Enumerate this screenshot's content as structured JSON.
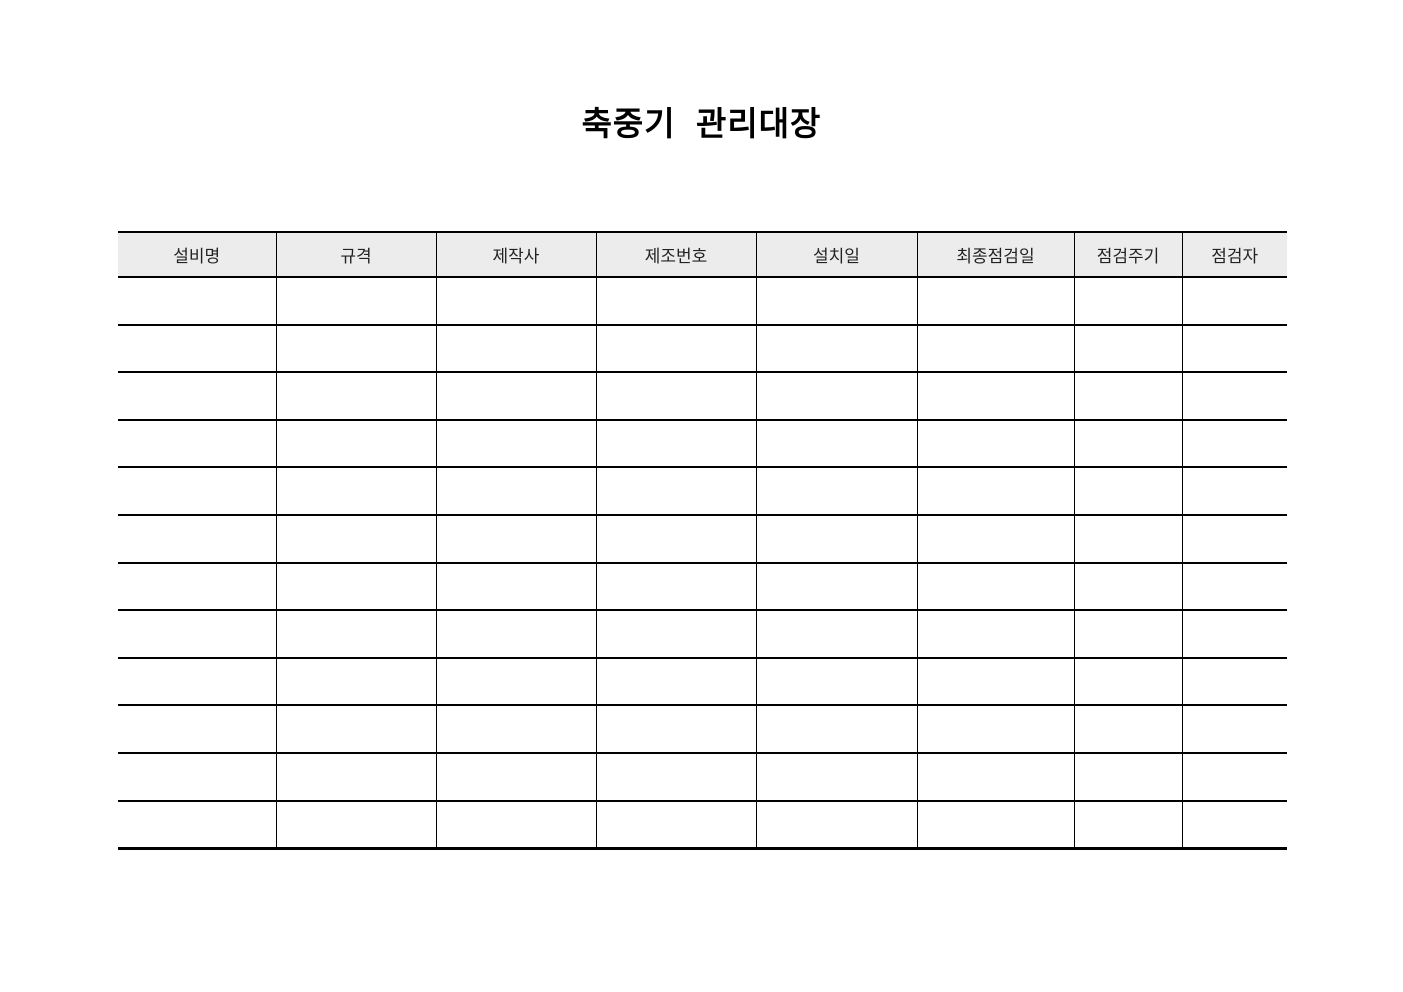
{
  "page": {
    "title": "축중기  관리대장"
  },
  "colors": {
    "page_bg": "#ffffff",
    "header_bg": "#ececec",
    "border": "#000000",
    "header_text": "#222222",
    "title_text": "#000000"
  },
  "table": {
    "columns": [
      "설비명",
      "규격",
      "제작사",
      "제조번호",
      "설치일",
      "최종점검일",
      "점검주기",
      "점검자"
    ],
    "rows": [
      [
        "",
        "",
        "",
        "",
        "",
        "",
        "",
        ""
      ],
      [
        "",
        "",
        "",
        "",
        "",
        "",
        "",
        ""
      ],
      [
        "",
        "",
        "",
        "",
        "",
        "",
        "",
        ""
      ],
      [
        "",
        "",
        "",
        "",
        "",
        "",
        "",
        ""
      ],
      [
        "",
        "",
        "",
        "",
        "",
        "",
        "",
        ""
      ],
      [
        "",
        "",
        "",
        "",
        "",
        "",
        "",
        ""
      ],
      [
        "",
        "",
        "",
        "",
        "",
        "",
        "",
        ""
      ],
      [
        "",
        "",
        "",
        "",
        "",
        "",
        "",
        ""
      ],
      [
        "",
        "",
        "",
        "",
        "",
        "",
        "",
        ""
      ],
      [
        "",
        "",
        "",
        "",
        "",
        "",
        "",
        ""
      ],
      [
        "",
        "",
        "",
        "",
        "",
        "",
        "",
        ""
      ],
      [
        "",
        "",
        "",
        "",
        "",
        "",
        "",
        ""
      ]
    ]
  }
}
